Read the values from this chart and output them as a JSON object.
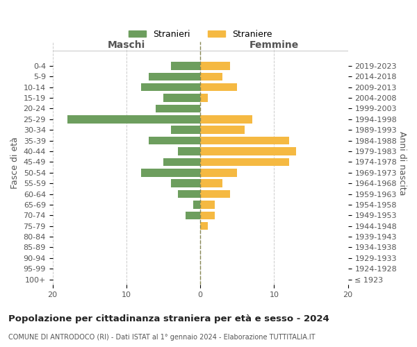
{
  "age_groups": [
    "100+",
    "95-99",
    "90-94",
    "85-89",
    "80-84",
    "75-79",
    "70-74",
    "65-69",
    "60-64",
    "55-59",
    "50-54",
    "45-49",
    "40-44",
    "35-39",
    "30-34",
    "25-29",
    "20-24",
    "15-19",
    "10-14",
    "5-9",
    "0-4"
  ],
  "birth_years": [
    "≤ 1923",
    "1924-1928",
    "1929-1933",
    "1934-1938",
    "1939-1943",
    "1944-1948",
    "1949-1953",
    "1954-1958",
    "1959-1963",
    "1964-1968",
    "1969-1973",
    "1974-1978",
    "1979-1983",
    "1984-1988",
    "1989-1993",
    "1994-1998",
    "1999-2003",
    "2004-2008",
    "2009-2013",
    "2014-2018",
    "2019-2023"
  ],
  "males": [
    0,
    0,
    0,
    0,
    0,
    0,
    2,
    1,
    3,
    4,
    8,
    5,
    3,
    7,
    4,
    18,
    6,
    5,
    8,
    7,
    4
  ],
  "females": [
    0,
    0,
    0,
    0,
    0,
    1,
    2,
    2,
    4,
    3,
    5,
    12,
    13,
    12,
    6,
    7,
    0,
    1,
    5,
    3,
    4
  ],
  "male_color": "#6d9e5e",
  "female_color": "#f5b942",
  "background_color": "#ffffff",
  "grid_color": "#cccccc",
  "text_color": "#555555",
  "title": "Popolazione per cittadinanza straniera per età e sesso - 2024",
  "subtitle": "COMUNE DI ANTRODOCO (RI) - Dati ISTAT al 1° gennaio 2024 - Elaborazione TUTTITALIA.IT",
  "xlabel_left": "Maschi",
  "xlabel_right": "Femmine",
  "ylabel_left": "Fasce di età",
  "ylabel_right": "Anni di nascita",
  "xlim": 20,
  "legend_males": "Stranieri",
  "legend_females": "Straniere"
}
